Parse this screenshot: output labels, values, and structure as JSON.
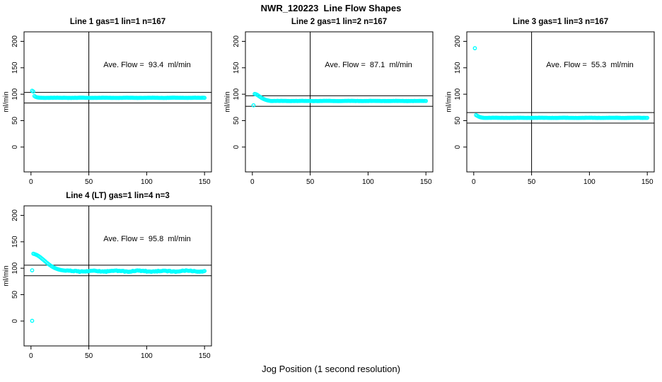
{
  "chart_data": {
    "type": "scatter",
    "title": "NWR_120223  Line Flow Shapes",
    "xlabel": "Jog Position (1 second resolution)",
    "ylabel": "ml/min",
    "x_ticks": [
      0,
      50,
      100,
      150
    ],
    "y_ticks": [
      0,
      50,
      100,
      150,
      200
    ],
    "xlim": [
      -6,
      156
    ],
    "ylim": [
      -47,
      218
    ],
    "grid": false,
    "legend": "none",
    "vline_x": 50,
    "point_color": "#00FFFF",
    "axis_color": "#000000",
    "background_color": "#FFFFFF",
    "panels": [
      {
        "title": "Line 1 gas=1 lin=1 n=167",
        "annotation": "Ave. Flow =  93.4  ml/min",
        "ave_flow": 93.4,
        "n": 167,
        "hlines": [
          103.4,
          83.4
        ],
        "transient": [
          [
            1,
            106.5
          ],
          [
            2,
            105
          ],
          [
            3,
            96.5
          ],
          [
            4,
            95
          ],
          [
            5,
            94.2
          ],
          [
            6,
            93.8
          ],
          [
            7,
            93.5
          ],
          [
            8,
            93.4
          ],
          [
            9,
            93.3
          ],
          [
            10,
            93.2
          ]
        ],
        "steady": {
          "x_from": 11,
          "x_to": 150,
          "y": 93.2,
          "noise": 0.35,
          "seed": 7
        }
      },
      {
        "title": "Line 2 gas=1 lin=2 n=167",
        "annotation": "Ave. Flow =  87.1  ml/min",
        "ave_flow": 87.1,
        "n": 167,
        "hlines": [
          97.1,
          77.1
        ],
        "transient": [
          [
            1,
            79
          ],
          [
            2,
            100.5
          ],
          [
            3,
            100
          ],
          [
            4,
            99
          ],
          [
            5,
            97.5
          ],
          [
            6,
            96
          ],
          [
            7,
            94.5
          ],
          [
            8,
            93
          ],
          [
            9,
            91.8
          ],
          [
            10,
            90.7
          ],
          [
            11,
            89.8
          ],
          [
            12,
            89
          ],
          [
            13,
            88.4
          ],
          [
            14,
            87.9
          ],
          [
            15,
            87.5
          ]
        ],
        "steady": {
          "x_from": 16,
          "x_to": 150,
          "y": 87.2,
          "noise": 0.35,
          "seed": 13
        }
      },
      {
        "title": "Line 3 gas=1 lin=3 n=167",
        "annotation": "Ave. Flow =  55.3  ml/min",
        "ave_flow": 55.3,
        "n": 167,
        "hlines": [
          65.3,
          45.3
        ],
        "transient": [
          [
            1,
            187
          ],
          [
            2,
            60.5
          ],
          [
            3,
            59.2
          ],
          [
            4,
            58
          ],
          [
            5,
            57
          ],
          [
            6,
            56.3
          ],
          [
            7,
            55.8
          ],
          [
            8,
            55.5
          ]
        ],
        "steady": {
          "x_from": 9,
          "x_to": 150,
          "y": 55.3,
          "noise": 0.3,
          "seed": 21
        }
      },
      {
        "title": "Line 4 (LT) gas=1 lin=4 n=3",
        "annotation": "Ave. Flow =  95.8  ml/min",
        "ave_flow": 95.8,
        "n": 3,
        "hlines": [
          105.8,
          85.8
        ],
        "transient": [
          [
            1,
            0.5
          ],
          [
            1,
            96
          ],
          [
            2,
            127.5
          ],
          [
            3,
            126.8
          ],
          [
            4,
            126
          ],
          [
            5,
            125
          ],
          [
            6,
            123.8
          ],
          [
            7,
            122.4
          ],
          [
            8,
            120.8
          ],
          [
            9,
            119
          ],
          [
            10,
            117.2
          ],
          [
            11,
            115.4
          ],
          [
            12,
            113.5
          ],
          [
            13,
            111.6
          ],
          [
            14,
            109.8
          ],
          [
            15,
            108
          ],
          [
            16,
            106.4
          ],
          [
            17,
            104.9
          ],
          [
            18,
            103.5
          ],
          [
            19,
            102.2
          ],
          [
            20,
            101
          ],
          [
            21,
            100
          ],
          [
            22,
            99.1
          ],
          [
            23,
            98.3
          ],
          [
            24,
            97.6
          ],
          [
            25,
            97
          ],
          [
            26,
            96.5
          ],
          [
            27,
            96.1
          ],
          [
            28,
            95.8
          ],
          [
            29,
            95.5
          ],
          [
            30,
            95.3
          ]
        ],
        "steady": {
          "x_from": 31,
          "x_to": 150,
          "y": 94.5,
          "noise": 1.7,
          "seed": 29
        }
      }
    ]
  }
}
